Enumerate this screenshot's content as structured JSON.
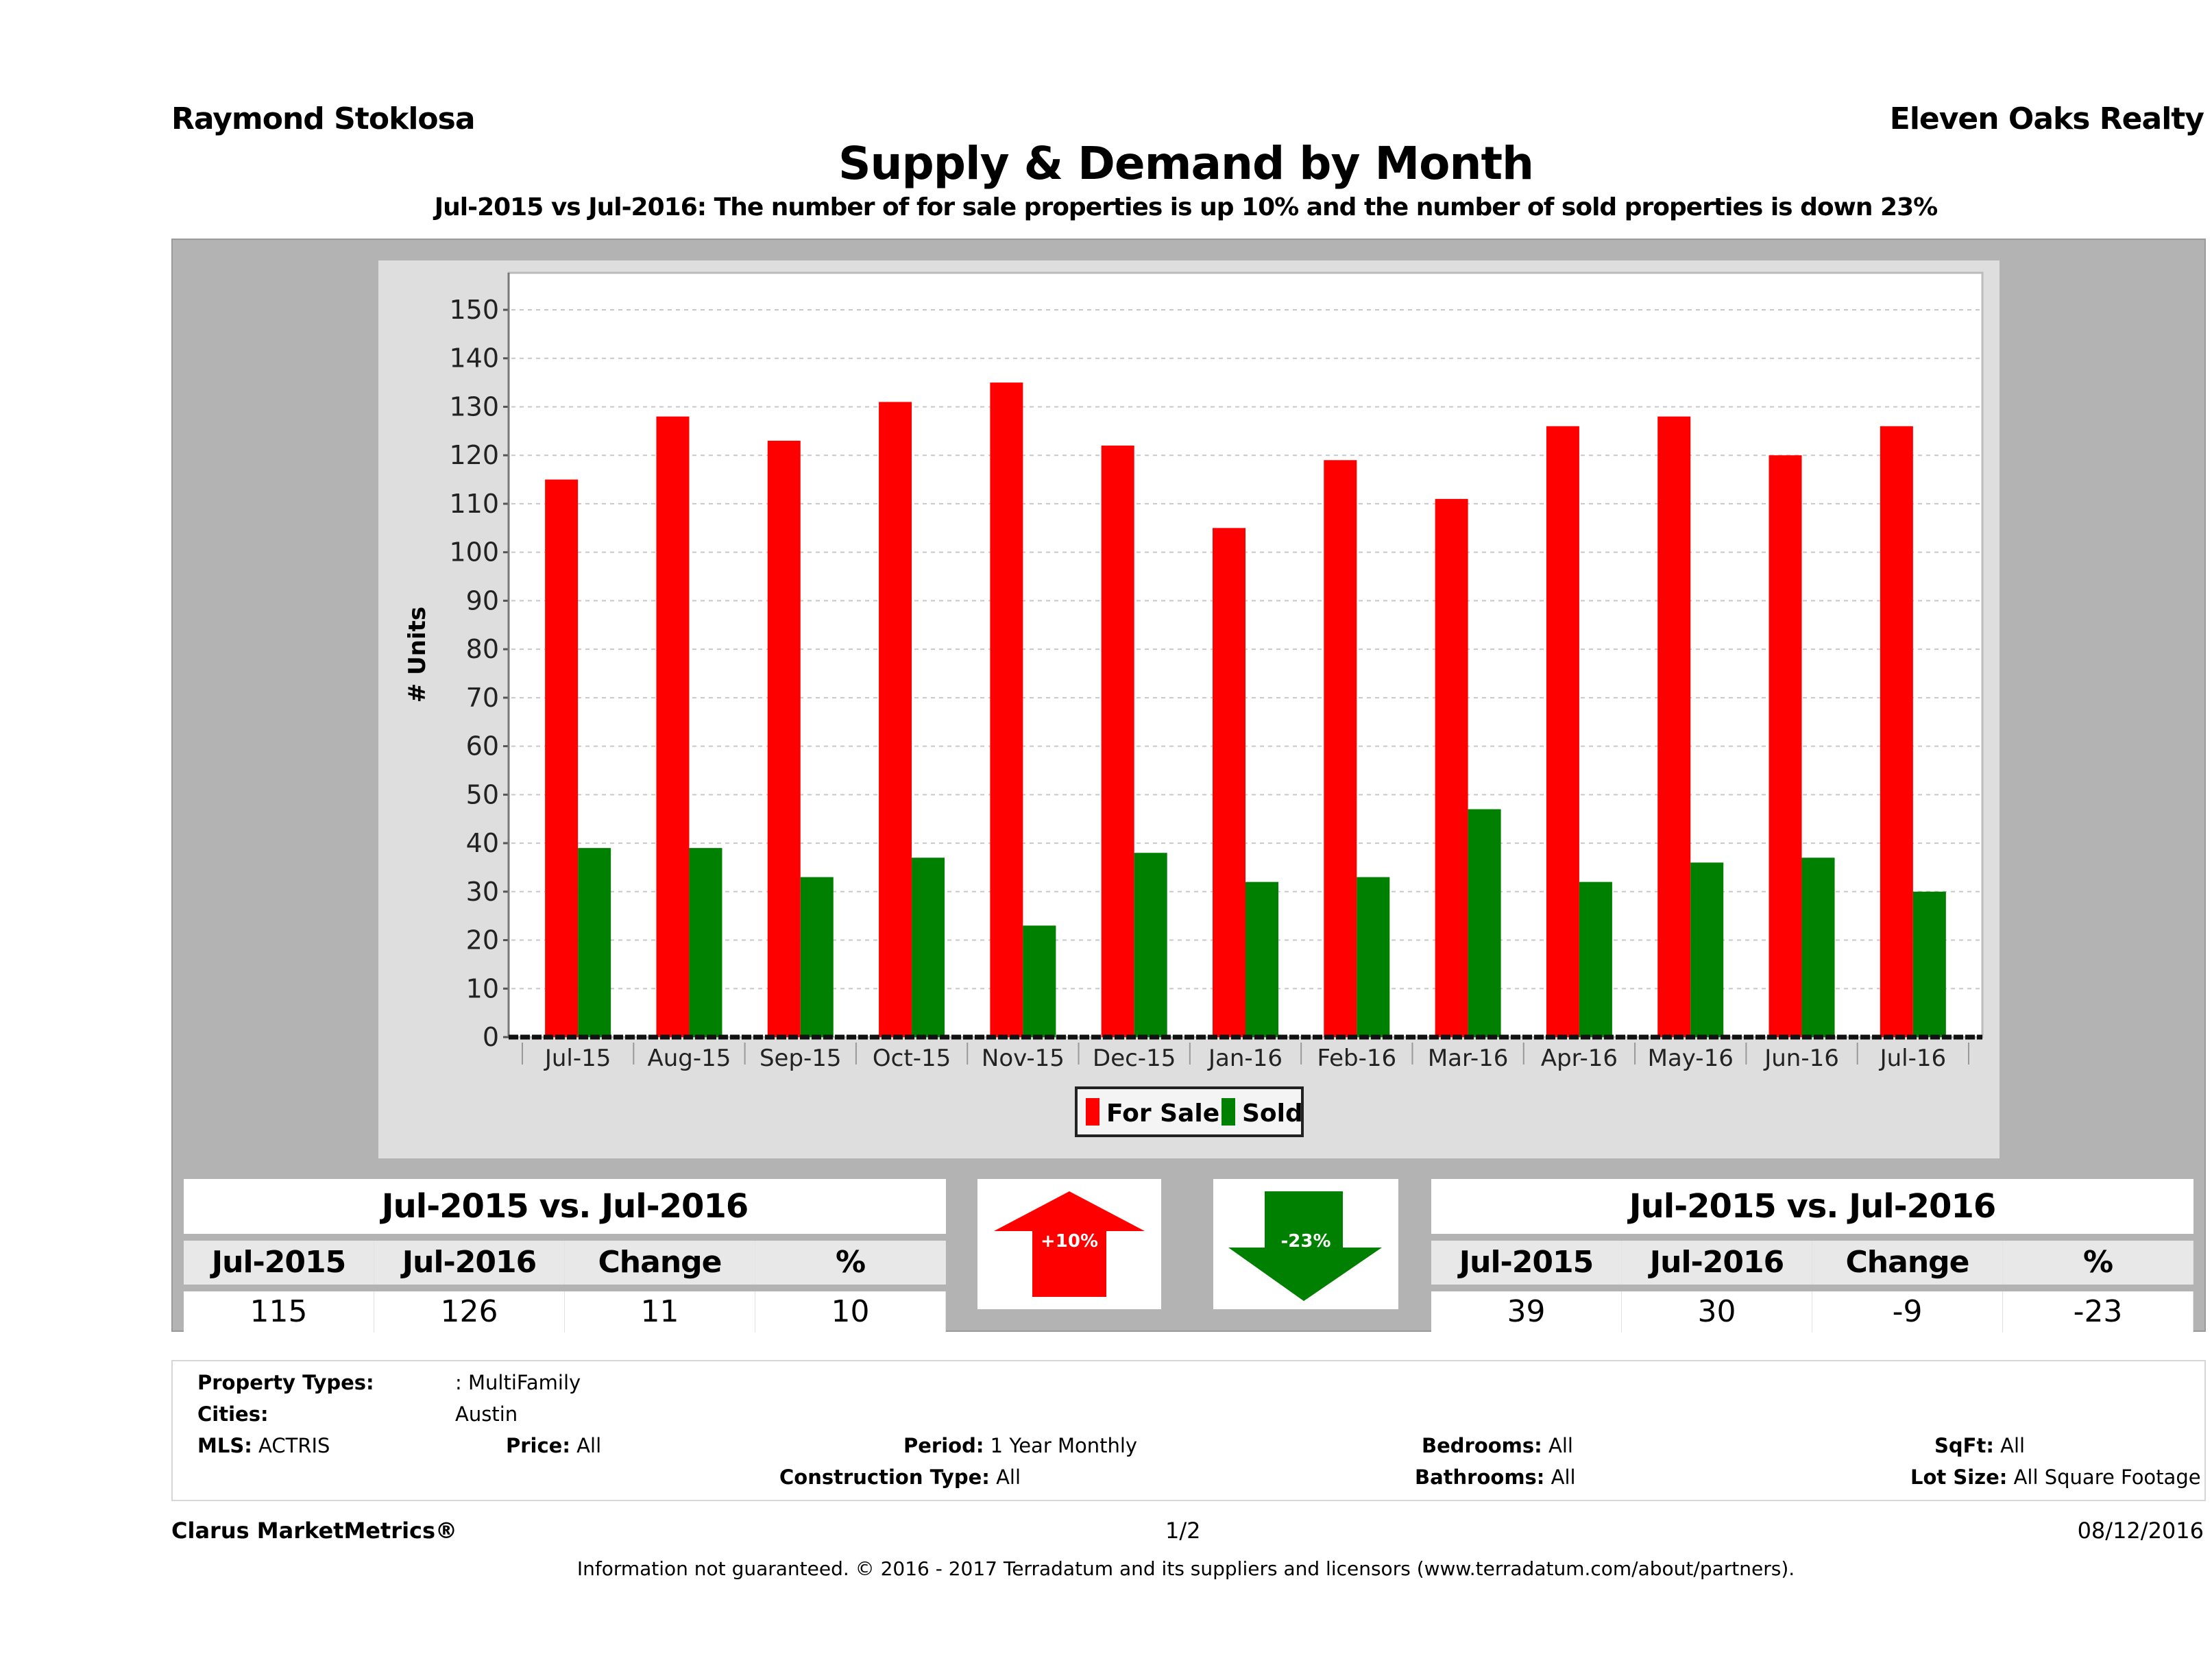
{
  "header": {
    "agent_name": "Raymond Stoklosa",
    "brokerage": "Eleven Oaks Realty",
    "title": "Supply & Demand by Month",
    "subtitle": "Jul-2015 vs Jul-2016: The number of for sale properties is up 10% and the number of sold properties is down 23%"
  },
  "colors": {
    "for_sale": "#ff0000",
    "sold": "#008000",
    "panel_gray": "#b3b3b3",
    "chart_bg": "#dedede"
  },
  "chart_data": {
    "type": "bar",
    "title": "Supply & Demand by Month",
    "xlabel": "",
    "ylabel": "# Units",
    "ylim": [
      0,
      150
    ],
    "yticks": [
      0,
      10,
      20,
      30,
      40,
      50,
      60,
      70,
      80,
      90,
      100,
      110,
      120,
      130,
      140,
      150
    ],
    "grid": true,
    "legend_position": "bottom-center",
    "categories": [
      "Jul-15",
      "Aug-15",
      "Sep-15",
      "Oct-15",
      "Nov-15",
      "Dec-15",
      "Jan-16",
      "Feb-16",
      "Mar-16",
      "Apr-16",
      "May-16",
      "Jun-16",
      "Jul-16"
    ],
    "series": [
      {
        "name": "For Sale",
        "color": "#ff0000",
        "values": [
          115,
          128,
          123,
          131,
          135,
          122,
          105,
          119,
          111,
          126,
          128,
          120,
          126
        ]
      },
      {
        "name": "Sold",
        "color": "#008000",
        "values": [
          39,
          39,
          33,
          37,
          23,
          38,
          32,
          33,
          47,
          32,
          36,
          37,
          30
        ]
      }
    ]
  },
  "stats": {
    "for_sale": {
      "title": "Jul-2015 vs. Jul-2016",
      "headers": [
        "Jul-2015",
        "Jul-2016",
        "Change",
        "%"
      ],
      "values": [
        "115",
        "126",
        "11",
        "10"
      ],
      "arrow_label": "+10%",
      "direction": "up"
    },
    "sold": {
      "title": "Jul-2015 vs. Jul-2016",
      "headers": [
        "Jul-2015",
        "Jul-2016",
        "Change",
        "%"
      ],
      "values": [
        "39",
        "30",
        "-9",
        "-23"
      ],
      "arrow_label": "-23%",
      "direction": "down"
    }
  },
  "criteria": {
    "property_types_label": "Property Types:",
    "property_types_value": ": MultiFamily",
    "cities_label": "Cities:",
    "cities_value": "Austin",
    "mls_label": "MLS:",
    "mls_value": "ACTRIS",
    "price_label": "Price:",
    "price_value": "All",
    "period_label": "Period:",
    "period_value": "1 Year Monthly",
    "construction_label": "Construction Type:",
    "construction_value": "All",
    "bedrooms_label": "Bedrooms:",
    "bedrooms_value": "All",
    "bathrooms_label": "Bathrooms:",
    "bathrooms_value": "All",
    "sqft_label": "SqFt:",
    "sqft_value": "All",
    "lotsize_label": "Lot Size:",
    "lotsize_value": "All Square Footage"
  },
  "footer": {
    "product": "Clarus MarketMetrics®",
    "page": "1/2",
    "date": "08/12/2016",
    "disclaimer": "Information not guaranteed. © 2016 - 2017 Terradatum and its suppliers and licensors (www.terradatum.com/about/partners)."
  }
}
